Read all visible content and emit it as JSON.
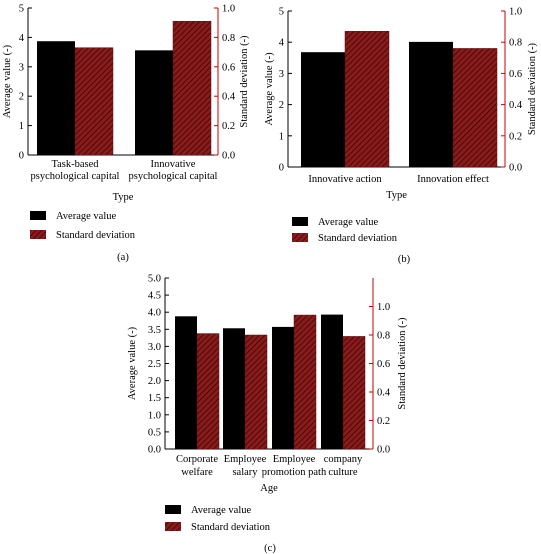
{
  "colors": {
    "average": "#000000",
    "stddev": "#8b1a1a",
    "right_axis": "#cc0000"
  },
  "legend": {
    "average_label": "Average value",
    "stddev_label": "Standard deviation"
  },
  "chart_data": [
    {
      "type": "bar",
      "panel_label": "(a)",
      "xlabel": "Type",
      "ylabel": "Average value (-)",
      "y2label": "Standard deviation (-)",
      "ylim": [
        0,
        5
      ],
      "y2lim": [
        0,
        1.0
      ],
      "yticks": [
        "0",
        "1",
        "2",
        "3",
        "4",
        "5"
      ],
      "y2ticks": [
        "0.0",
        "0.2",
        "0.4",
        "0.6",
        "0.8",
        "1.0"
      ],
      "categories": [
        [
          "Task-based",
          "psychological capital"
        ],
        [
          "Innovative",
          "psychological capital"
        ]
      ],
      "series": [
        {
          "name": "Average value",
          "axis": "left",
          "values": [
            3.87,
            3.56
          ]
        },
        {
          "name": "Standard deviation",
          "axis": "right",
          "values": [
            0.73,
            0.91
          ]
        }
      ],
      "legend_position": "below"
    },
    {
      "type": "bar",
      "panel_label": "(b)",
      "xlabel": "Type",
      "ylabel": "Average value (-)",
      "y2label": "Standard deviation (-)",
      "ylim": [
        0,
        5
      ],
      "y2lim": [
        0,
        1.0
      ],
      "yticks": [
        "0",
        "1",
        "2",
        "3",
        "4",
        "5"
      ],
      "y2ticks": [
        "0.0",
        "0.2",
        "0.4",
        "0.6",
        "0.8",
        "1.0"
      ],
      "categories": [
        [
          "Innovative action"
        ],
        [
          "Innovation effect"
        ]
      ],
      "series": [
        {
          "name": "Average value",
          "axis": "left",
          "values": [
            3.68,
            4.01
          ]
        },
        {
          "name": "Standard deviation",
          "axis": "right",
          "values": [
            0.87,
            0.76
          ]
        }
      ],
      "legend_position": "below"
    },
    {
      "type": "bar",
      "panel_label": "(c)",
      "xlabel": "Age",
      "ylabel": "Average value (-)",
      "y2label": "Standard deviation (-)",
      "ylim": [
        0,
        5.0
      ],
      "y2lim": [
        0,
        1.2
      ],
      "yticks": [
        "0.0",
        "0.5",
        "1.0",
        "1.5",
        "2.0",
        "2.5",
        "3.0",
        "3.5",
        "4.0",
        "4.5",
        "5.0"
      ],
      "y2ticks": [
        "0.0",
        "0.2",
        "0.4",
        "0.6",
        "0.8",
        "1.0"
      ],
      "categories": [
        [
          "Corporate",
          "welfare"
        ],
        [
          "Employee",
          "salary"
        ],
        [
          "Employee",
          "promotion path"
        ],
        [
          "company",
          "culture"
        ]
      ],
      "series": [
        {
          "name": "Average value",
          "axis": "left",
          "values": [
            3.88,
            3.53,
            3.57,
            3.93
          ]
        },
        {
          "name": "Standard deviation",
          "axis": "right",
          "values": [
            0.81,
            0.8,
            0.94,
            0.79
          ]
        }
      ],
      "legend_position": "below"
    }
  ]
}
